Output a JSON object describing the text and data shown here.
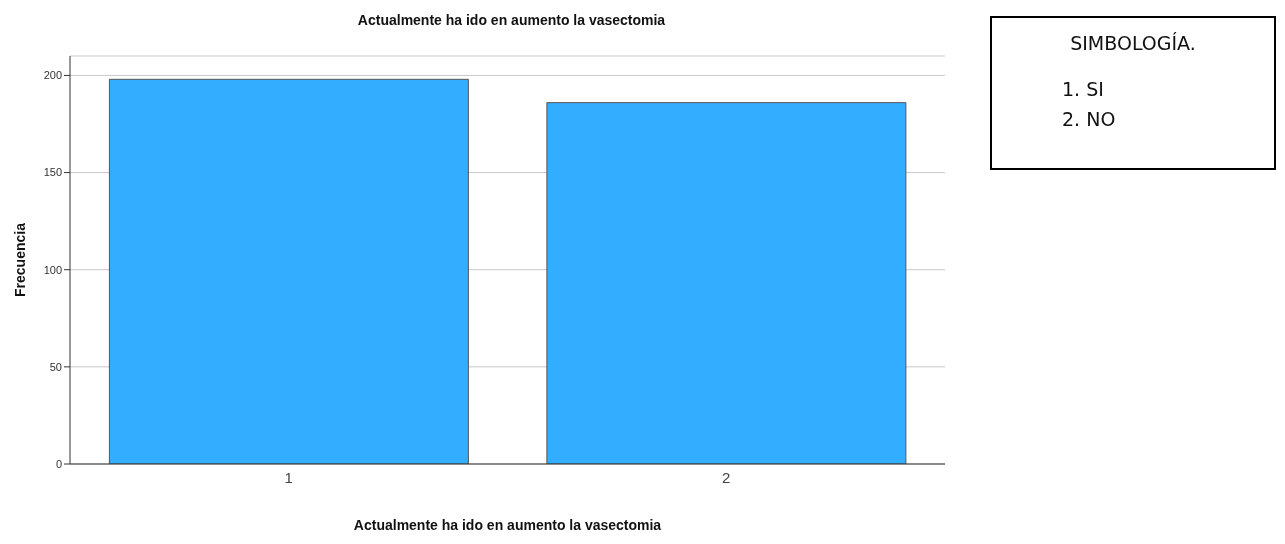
{
  "chart_data": {
    "type": "bar",
    "title": "Actualmente ha ido en aumento la vasectomia",
    "xlabel": "Actualmente ha ido en aumento la vasectomia",
    "ylabel": "Frecuencia",
    "categories": [
      "1",
      "2"
    ],
    "values": [
      198,
      186
    ],
    "color": "#33adff",
    "ylim": [
      0,
      210
    ],
    "yticks": [
      0,
      50,
      100,
      150,
      200
    ],
    "grid": "y",
    "annotations": [
      "SIMBOLOGÍA.",
      "1.   SI",
      "2.   NO"
    ]
  }
}
